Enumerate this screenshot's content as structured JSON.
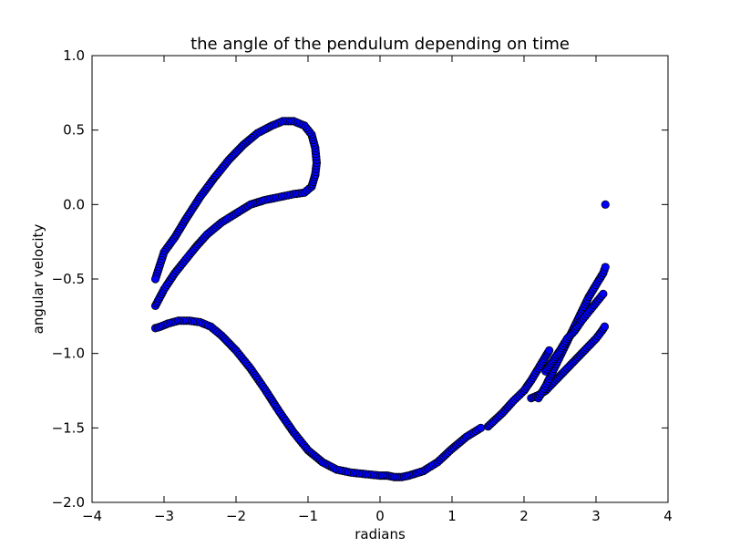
{
  "chart_data": {
    "type": "scatter",
    "title": "the angle of the pendulum depending on time",
    "xlabel": "radians",
    "ylabel": "angular velocity",
    "xlim": [
      -4,
      4
    ],
    "ylim": [
      -2.0,
      1.0
    ],
    "xticks": [
      "−4",
      "−3",
      "−2",
      "−1",
      "0",
      "1",
      "2",
      "3",
      "4"
    ],
    "yticks": [
      "1.0",
      "0.5",
      "0.0",
      "−0.5",
      "−1.0",
      "−1.5",
      "−2.0"
    ],
    "grid": false,
    "marker_color": "#0000ff",
    "marker_edge_color": "#000000",
    "series": [
      {
        "x": [
          -3.12,
          -3.05,
          -2.95,
          -2.8,
          -2.65,
          -2.5,
          -2.35,
          -2.2,
          -2.0,
          -1.8,
          -1.6,
          -1.4,
          -1.2,
          -1.0,
          -0.8,
          -0.6,
          -0.4,
          -0.2,
          0.0,
          0.1,
          0.2,
          0.3,
          0.4,
          0.6,
          0.8,
          1.0,
          1.2,
          1.4
        ],
        "y": [
          -0.83,
          -0.82,
          -0.8,
          -0.78,
          -0.78,
          -0.79,
          -0.82,
          -0.88,
          -0.98,
          -1.1,
          -1.24,
          -1.39,
          -1.53,
          -1.65,
          -1.73,
          -1.78,
          -1.8,
          -1.81,
          -1.82,
          -1.82,
          -1.83,
          -1.83,
          -1.82,
          -1.79,
          -1.73,
          -1.64,
          -1.56,
          -1.5
        ]
      },
      {
        "x": [
          1.5,
          1.7,
          1.85,
          2.0,
          2.1,
          2.2,
          2.3,
          2.35
        ],
        "y": [
          -1.49,
          -1.4,
          -1.32,
          -1.25,
          -1.18,
          -1.1,
          -1.02,
          -0.98
        ]
      },
      {
        "x": [
          -3.12,
          -3.0,
          -2.85,
          -2.7,
          -2.55,
          -2.4,
          -2.2,
          -2.0,
          -1.8,
          -1.6,
          -1.4,
          -1.2,
          -1.05,
          -0.95,
          -0.9
        ],
        "y": [
          -0.68,
          -0.57,
          -0.46,
          -0.37,
          -0.28,
          -0.2,
          -0.12,
          -0.06,
          0.0,
          0.03,
          0.05,
          0.07,
          0.08,
          0.12,
          0.2
        ]
      },
      {
        "x": [
          -0.9,
          -0.88,
          -0.9,
          -0.95,
          -1.05,
          -1.2,
          -1.35,
          -1.5,
          -1.7,
          -1.9,
          -2.1,
          -2.3,
          -2.5,
          -2.7,
          -2.85,
          -3.0,
          -3.12
        ],
        "y": [
          0.2,
          0.28,
          0.38,
          0.47,
          0.53,
          0.56,
          0.56,
          0.53,
          0.48,
          0.4,
          0.3,
          0.18,
          0.05,
          -0.1,
          -0.22,
          -0.32,
          -0.5
        ]
      },
      {
        "x": [
          2.1,
          2.2,
          2.3,
          2.4,
          2.5,
          2.6,
          2.7,
          2.8,
          2.9,
          3.0,
          3.08,
          3.12
        ],
        "y": [
          -1.3,
          -1.28,
          -1.25,
          -1.2,
          -1.15,
          -1.1,
          -1.05,
          -1.0,
          -0.95,
          -0.9,
          -0.85,
          -0.82
        ]
      },
      {
        "x": [
          2.2,
          2.3,
          2.4,
          2.5,
          2.6,
          2.7,
          2.8,
          2.9,
          3.0,
          3.1,
          3.13
        ],
        "y": [
          -1.3,
          -1.22,
          -1.12,
          -1.02,
          -0.92,
          -0.82,
          -0.72,
          -0.62,
          -0.54,
          -0.46,
          -0.42
        ]
      },
      {
        "x": [
          2.3,
          2.4,
          2.5,
          2.6,
          2.7,
          2.8,
          2.9,
          3.0,
          3.1
        ],
        "y": [
          -1.12,
          -1.05,
          -0.98,
          -0.9,
          -0.85,
          -0.78,
          -0.72,
          -0.66,
          -0.6
        ]
      },
      {
        "x": [
          3.13
        ],
        "y": [
          0.0
        ]
      }
    ]
  }
}
